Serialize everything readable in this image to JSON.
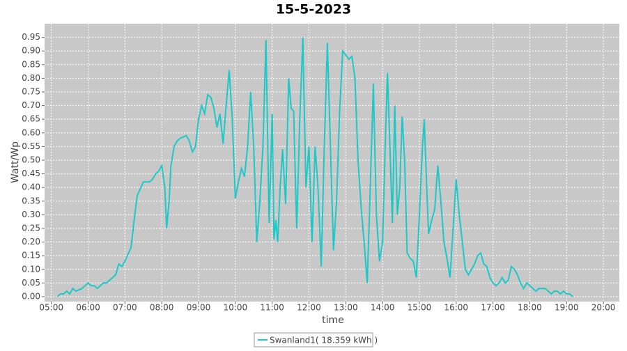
{
  "chart_data": {
    "type": "line",
    "title": "15-5-2023",
    "xlabel": "time",
    "ylabel": "Watt/Wp",
    "x": [
      "05:10",
      "05:15",
      "05:20",
      "05:25",
      "05:30",
      "05:35",
      "05:40",
      "05:50",
      "06:00",
      "06:05",
      "06:10",
      "06:15",
      "06:20",
      "06:25",
      "06:30",
      "06:40",
      "06:45",
      "06:50",
      "06:55",
      "07:00",
      "07:10",
      "07:15",
      "07:20",
      "07:30",
      "07:40",
      "07:45",
      "07:50",
      "07:55",
      "08:00",
      "08:05",
      "08:08",
      "08:12",
      "08:15",
      "08:20",
      "08:25",
      "08:30",
      "08:40",
      "08:45",
      "08:50",
      "08:55",
      "09:00",
      "09:05",
      "09:10",
      "09:15",
      "09:20",
      "09:25",
      "09:30",
      "09:35",
      "09:40",
      "09:45",
      "09:50",
      "09:55",
      "10:00",
      "10:05",
      "10:10",
      "10:15",
      "10:20",
      "10:25",
      "10:30",
      "10:35",
      "10:40",
      "10:45",
      "10:50",
      "10:55",
      "11:00",
      "11:03",
      "11:06",
      "11:09",
      "11:13",
      "11:17",
      "11:22",
      "11:27",
      "11:31",
      "11:35",
      "11:40",
      "11:45",
      "11:50",
      "11:55",
      "12:00",
      "12:05",
      "12:10",
      "12:15",
      "12:20",
      "12:25",
      "12:30",
      "12:35",
      "12:40",
      "12:45",
      "12:50",
      "12:55",
      "13:05",
      "13:10",
      "13:15",
      "13:20",
      "13:25",
      "13:30",
      "13:35",
      "13:40",
      "13:45",
      "13:50",
      "13:55",
      "14:00",
      "14:05",
      "14:08",
      "14:12",
      "14:16",
      "14:20",
      "14:24",
      "14:28",
      "14:32",
      "14:36",
      "14:40",
      "14:45",
      "14:50",
      "14:55",
      "15:00",
      "15:05",
      "15:08",
      "15:12",
      "15:15",
      "15:20",
      "15:25",
      "15:30",
      "15:35",
      "15:40",
      "15:45",
      "15:50",
      "15:55",
      "16:00",
      "16:05",
      "16:10",
      "16:15",
      "16:20",
      "16:25",
      "16:30",
      "16:35",
      "16:40",
      "16:45",
      "16:50",
      "16:55",
      "17:00",
      "17:05",
      "17:10",
      "17:15",
      "17:20",
      "17:25",
      "17:30",
      "17:35",
      "17:40",
      "17:45",
      "17:50",
      "17:55",
      "18:00",
      "18:05",
      "18:10",
      "18:15",
      "18:20",
      "18:25",
      "18:30",
      "18:35",
      "18:40",
      "18:45",
      "18:50",
      "18:55",
      "19:00",
      "19:05",
      "19:10"
    ],
    "series": [
      {
        "name": "Swanland1( 18.359 kWh )",
        "color": "#1cc8c8",
        "values": [
          0.0,
          0.01,
          0.01,
          0.02,
          0.01,
          0.03,
          0.02,
          0.03,
          0.05,
          0.04,
          0.04,
          0.03,
          0.04,
          0.05,
          0.05,
          0.07,
          0.08,
          0.12,
          0.11,
          0.13,
          0.18,
          0.28,
          0.37,
          0.42,
          0.42,
          0.43,
          0.45,
          0.46,
          0.48,
          0.4,
          0.25,
          0.35,
          0.48,
          0.55,
          0.57,
          0.58,
          0.59,
          0.57,
          0.53,
          0.55,
          0.65,
          0.7,
          0.67,
          0.74,
          0.73,
          0.69,
          0.62,
          0.67,
          0.56,
          0.7,
          0.83,
          0.65,
          0.36,
          0.42,
          0.47,
          0.44,
          0.55,
          0.75,
          0.55,
          0.2,
          0.35,
          0.55,
          0.94,
          0.27,
          0.67,
          0.21,
          0.28,
          0.2,
          0.4,
          0.54,
          0.34,
          0.8,
          0.69,
          0.68,
          0.25,
          0.65,
          0.95,
          0.4,
          0.55,
          0.2,
          0.55,
          0.39,
          0.11,
          0.55,
          0.93,
          0.55,
          0.17,
          0.35,
          0.68,
          0.9,
          0.87,
          0.88,
          0.8,
          0.5,
          0.33,
          0.2,
          0.05,
          0.4,
          0.78,
          0.3,
          0.13,
          0.2,
          0.6,
          0.82,
          0.55,
          0.27,
          0.7,
          0.3,
          0.4,
          0.66,
          0.5,
          0.16,
          0.14,
          0.13,
          0.07,
          0.3,
          0.55,
          0.65,
          0.4,
          0.23,
          0.28,
          0.32,
          0.48,
          0.35,
          0.2,
          0.14,
          0.07,
          0.25,
          0.43,
          0.3,
          0.2,
          0.1,
          0.08,
          0.1,
          0.12,
          0.15,
          0.16,
          0.12,
          0.11,
          0.07,
          0.05,
          0.04,
          0.05,
          0.07,
          0.05,
          0.06,
          0.11,
          0.1,
          0.08,
          0.05,
          0.03,
          0.05,
          0.04,
          0.03,
          0.02,
          0.03,
          0.03,
          0.03,
          0.02,
          0.01,
          0.02,
          0.02,
          0.01,
          0.02,
          0.01,
          0.01,
          0.0
        ]
      }
    ],
    "xlim": [
      "04:49",
      "20:26"
    ],
    "ylim": [
      -0.018,
      1.0
    ],
    "xticks": [
      "05:00",
      "06:00",
      "07:00",
      "08:00",
      "09:00",
      "10:00",
      "11:00",
      "12:00",
      "13:00",
      "14:00",
      "15:00",
      "16:00",
      "17:00",
      "18:00",
      "19:00",
      "20:00"
    ],
    "yticks": [
      {
        "value": 0,
        "label": "0.00"
      },
      {
        "value": 0.05,
        "label": "0.05"
      },
      {
        "value": 0.1,
        "label": "0.10"
      },
      {
        "value": 0.15,
        "label": "0.15"
      },
      {
        "value": 0.2,
        "label": "0.20"
      },
      {
        "value": 0.25,
        "label": "0.25"
      },
      {
        "value": 0.3,
        "label": "0.30"
      },
      {
        "value": 0.35,
        "label": "0.35"
      },
      {
        "value": 0.4,
        "label": "0.40"
      },
      {
        "value": 0.45,
        "label": "0.45"
      },
      {
        "value": 0.5,
        "label": "0.50"
      },
      {
        "value": 0.55,
        "label": "0.55"
      },
      {
        "value": 0.6,
        "label": "0.60"
      },
      {
        "value": 0.65,
        "label": "0.65"
      },
      {
        "value": 0.7,
        "label": "0.70"
      },
      {
        "value": 0.75,
        "label": "0.75"
      },
      {
        "value": 0.8,
        "label": "0.80"
      },
      {
        "value": 0.85,
        "label": "0.85"
      },
      {
        "value": 0.9,
        "label": "0.90"
      },
      {
        "value": 0.95,
        "label": "0.95"
      }
    ],
    "grid": true
  }
}
